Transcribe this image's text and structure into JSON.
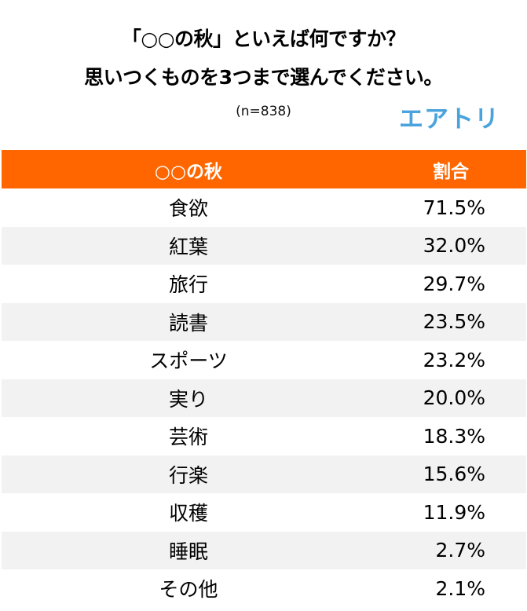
{
  "header": {
    "title_line1": "「○○の秋」といえば何ですか？",
    "title_line2": "思いつくものを3つまで選んでください。",
    "sample_size": "(n=838)",
    "logo": "エアトリ"
  },
  "colors": {
    "header_bg": "#ff6600",
    "header_text": "#ffffff",
    "row_alt_bg": "#f2f2f2",
    "logo": "#4aa3dc"
  },
  "table": {
    "columns": [
      "○○の秋",
      "割合"
    ],
    "rows": [
      {
        "label": "食欲",
        "value": "71.5%"
      },
      {
        "label": "紅葉",
        "value": "32.0%"
      },
      {
        "label": "旅行",
        "value": "29.7%"
      },
      {
        "label": "読書",
        "value": "23.5%"
      },
      {
        "label": "スポーツ",
        "value": "23.2%"
      },
      {
        "label": "実り",
        "value": "20.0%"
      },
      {
        "label": "芸術",
        "value": "18.3%"
      },
      {
        "label": "行楽",
        "value": "15.6%"
      },
      {
        "label": "収穫",
        "value": "11.9%"
      },
      {
        "label": "睡眠",
        "value": "2.7%"
      },
      {
        "label": "その他",
        "value": "2.1%"
      }
    ]
  },
  "chart_data": {
    "type": "table",
    "title": "「○○の秋」といえば何ですか？思いつくものを3つまで選んでください。",
    "subtitle": "(n=838)",
    "columns": [
      "○○の秋",
      "割合"
    ],
    "categories": [
      "食欲",
      "紅葉",
      "旅行",
      "読書",
      "スポーツ",
      "実り",
      "芸術",
      "行楽",
      "収穫",
      "睡眠",
      "その他"
    ],
    "values": [
      71.5,
      32.0,
      29.7,
      23.5,
      23.2,
      20.0,
      18.3,
      15.6,
      11.9,
      2.7,
      2.1
    ],
    "unit": "%"
  }
}
